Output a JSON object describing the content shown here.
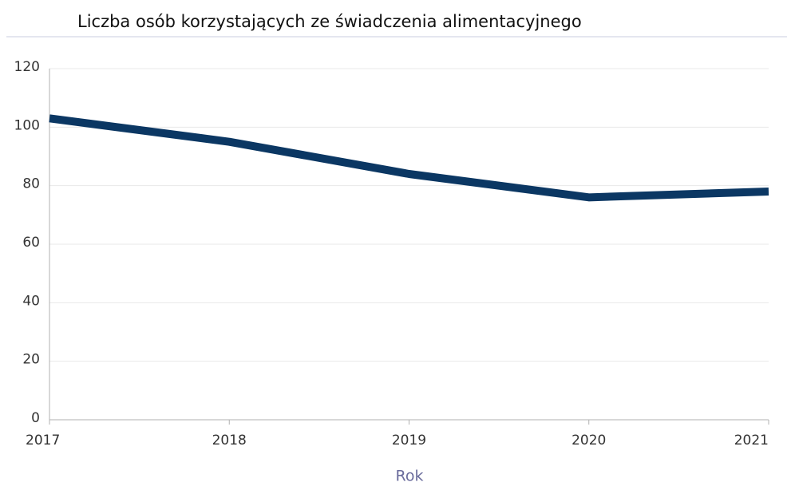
{
  "chart_data": {
    "type": "line",
    "title": "Liczba osób korzystających ze świadczenia alimentacyjnego",
    "x_label": "Rok",
    "x": [
      2017,
      2018,
      2019,
      2020,
      2021
    ],
    "series": [
      {
        "name": "Liczba osób korzystających ze świadczenia alimentacyjnego",
        "color": "#0b3763",
        "values": [
          103,
          95,
          84,
          76,
          78
        ]
      }
    ],
    "xlim": [
      2017,
      2021
    ],
    "xticks": [
      2017,
      2018,
      2019,
      2020,
      2021
    ],
    "ylim": [
      0,
      120
    ],
    "yticks": [
      0,
      20,
      40,
      60,
      80,
      100,
      120
    ],
    "grid": true
  }
}
